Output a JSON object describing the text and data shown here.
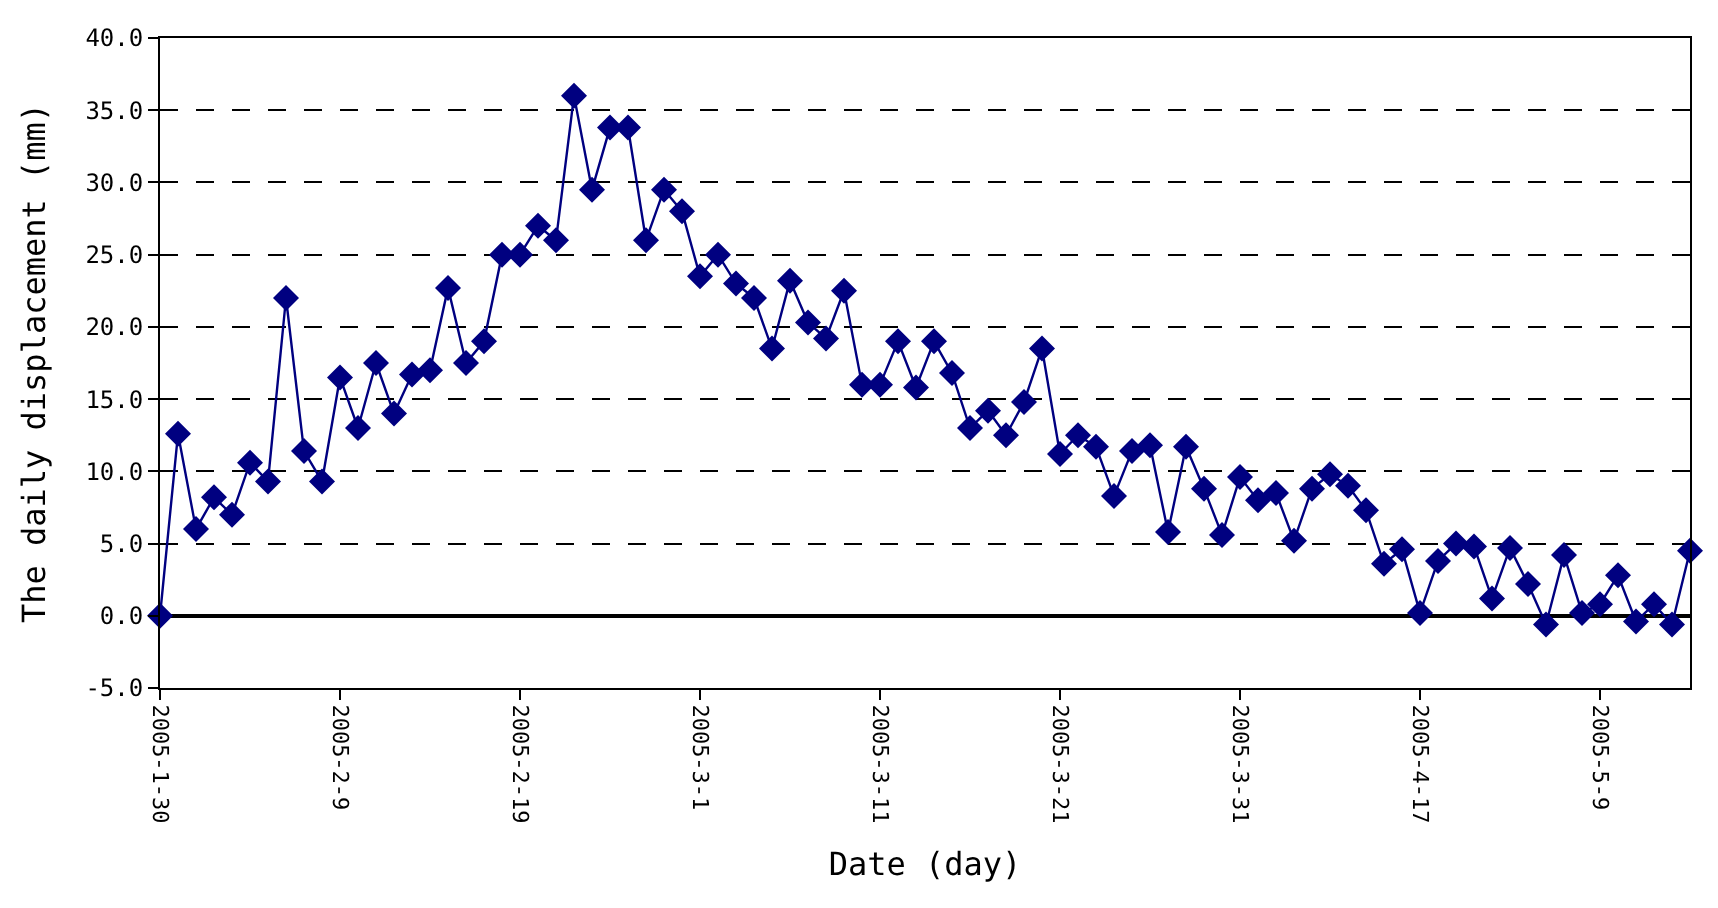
{
  "chart_data": {
    "type": "line",
    "xlabel": "Date (day)",
    "ylabel": "The daily displacement (mm)",
    "categories": [
      "2005-1-30",
      null,
      null,
      null,
      null,
      null,
      null,
      null,
      null,
      null,
      "2005-2-9",
      null,
      null,
      null,
      null,
      null,
      null,
      null,
      null,
      null,
      "2005-2-19",
      null,
      null,
      null,
      null,
      null,
      null,
      null,
      null,
      null,
      "2005-3-1",
      null,
      null,
      null,
      null,
      null,
      null,
      null,
      null,
      null,
      "2005-3-11",
      null,
      null,
      null,
      null,
      null,
      null,
      null,
      null,
      null,
      "2005-3-21",
      null,
      null,
      null,
      null,
      null,
      null,
      null,
      null,
      null,
      "2005-3-31",
      null,
      null,
      null,
      null,
      null,
      null,
      null,
      null,
      null,
      "2005-4-17",
      null,
      null,
      null,
      null,
      null,
      null,
      null,
      null,
      null,
      "2005-5-9",
      null,
      null,
      null,
      null,
      null
    ],
    "series": [
      {
        "color": "#000080",
        "values": [
          0,
          12.6,
          6.0,
          8.2,
          7.0,
          10.6,
          9.3,
          22.0,
          11.4,
          9.3,
          16.5,
          13.0,
          17.5,
          14.0,
          16.7,
          17.0,
          22.7,
          17.5,
          19.0,
          25.0,
          25.0,
          27.0,
          26.0,
          36.0,
          29.5,
          33.8,
          33.8,
          26.0,
          29.5,
          28.0,
          23.5,
          25.0,
          23.0,
          22.0,
          18.5,
          23.2,
          20.3,
          19.2,
          22.5,
          16.0,
          16.0,
          19.0,
          15.8,
          19.0,
          16.8,
          13.0,
          14.2,
          12.5,
          14.8,
          18.5,
          11.2,
          12.5,
          11.7,
          8.3,
          11.4,
          11.8,
          5.8,
          11.7,
          8.8,
          5.6,
          9.6,
          8.0,
          8.5,
          5.2,
          8.8,
          9.8,
          9.0,
          7.3,
          3.6,
          4.6,
          0.2,
          3.8,
          5.0,
          4.8,
          1.2,
          4.7,
          2.2,
          -0.6,
          4.2,
          0.2,
          0.8,
          2.8,
          -0.4,
          0.8,
          -0.6,
          4.5
        ]
      }
    ],
    "ylim": [
      -5,
      40
    ],
    "yticks": [
      {
        "value": -5,
        "label": "-5.0"
      },
      {
        "value": 0,
        "label": "0.0"
      },
      {
        "value": 5,
        "label": "5.0"
      },
      {
        "value": 10,
        "label": "10.0"
      },
      {
        "value": 15,
        "label": "15.0"
      },
      {
        "value": 20,
        "label": "20.0"
      },
      {
        "value": 25,
        "label": "25.0"
      },
      {
        "value": 30,
        "label": "30.0"
      },
      {
        "value": 35,
        "label": "35.0"
      },
      {
        "value": 40,
        "label": "40.0"
      }
    ],
    "grid": "y",
    "marker": "diamond",
    "line_style": "solid"
  }
}
